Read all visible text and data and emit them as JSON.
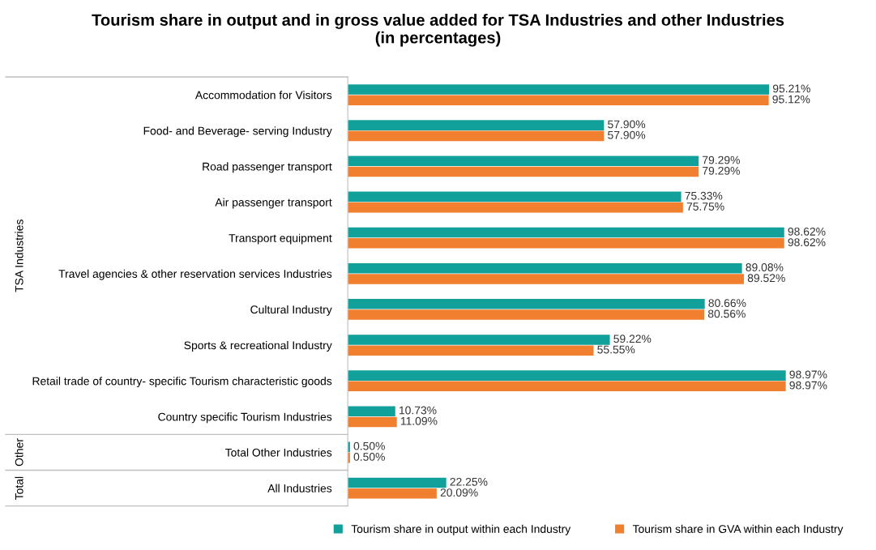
{
  "chart_data": {
    "type": "bar",
    "orientation": "horizontal",
    "title": "Tourism share in output and in gross value added for TSA Industries and other Industries\n(in percentages)",
    "categories": [
      "Accommodation for Visitors",
      "Food- and Beverage- serving Industry",
      "Road passenger transport",
      "Air passenger transport",
      "Transport equipment",
      "Travel agencies & other reservation services Industries",
      "Cultural Industry",
      "Sports & recreational Industry",
      "Retail trade of country- specific Tourism characteristic goods",
      "Country specific Tourism Industries",
      "Total Other Industries",
      "All Industries"
    ],
    "series": [
      {
        "name": "Tourism share in output within each Industry",
        "color": "#12a09a",
        "values": [
          95.21,
          57.9,
          79.29,
          75.33,
          98.62,
          89.08,
          80.66,
          59.22,
          98.97,
          10.73,
          0.5,
          22.25
        ],
        "value_labels": [
          "95.21%",
          "57.90%",
          "79.29%",
          "75.33%",
          "98.62%",
          "89.08%",
          "80.66%",
          "59.22%",
          "98.97%",
          "10.73%",
          "0.50%",
          "22.25%"
        ]
      },
      {
        "name": "Tourism share in GVA within each Industry",
        "color": "#f07f2f",
        "values": [
          95.12,
          57.9,
          79.29,
          75.75,
          98.62,
          89.52,
          80.56,
          55.55,
          98.97,
          11.09,
          0.5,
          20.09
        ],
        "value_labels": [
          "95.12%",
          "57.90%",
          "79.29%",
          "75.75%",
          "98.62%",
          "89.52%",
          "80.56%",
          "55.55%",
          "98.97%",
          "11.09%",
          "0.50%",
          "20.09%"
        ]
      }
    ],
    "annotations": [
      "TSA Industries",
      "Other",
      "Total"
    ],
    "legend": "bottom",
    "grid": false
  }
}
